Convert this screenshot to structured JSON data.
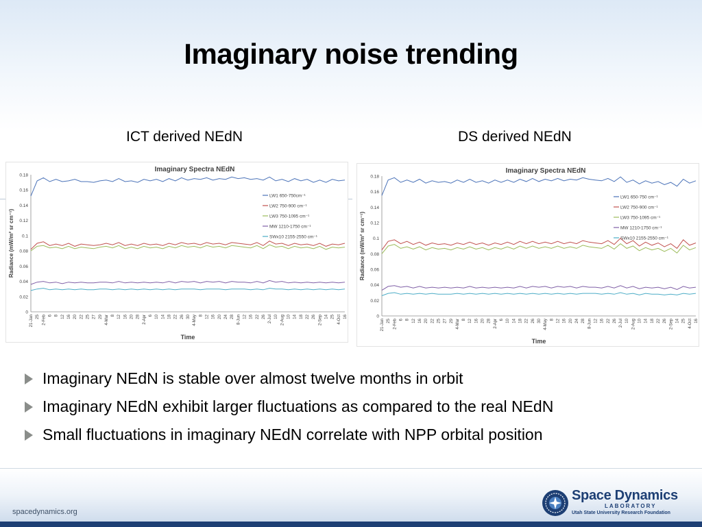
{
  "slide": {
    "title": "Imaginary noise trending",
    "subtitle_left": "ICT derived NEdN",
    "subtitle_right": "DS derived NEdN"
  },
  "bullets": [
    "Imaginary NEdN is stable over almost twelve months in orbit",
    "Imaginary NEdN exhibit larger fluctuations as compared to the real NEdN",
    "Small fluctuations in imaginary NEdN correlate with NPP orbital position"
  ],
  "footer": {
    "url": "spacedynamics.org",
    "logo_line1": "Space Dynamics",
    "logo_line2": "LABORATORY",
    "logo_line3": "Utah State University Research Foundation"
  },
  "colors": {
    "LW1": "#4a72b8",
    "LW2": "#c0504d",
    "LW3": "#9bbb59",
    "MW": "#7f5fa6",
    "SWx10": "#4bacc6",
    "footer_band": "#1d3f74",
    "bullet_arrow": "#8a8d8a"
  },
  "chart_data": [
    {
      "type": "line",
      "title": "Imaginary Spectra NEdN",
      "xlabel": "Time",
      "ylabel": "Radiance (mW/m² sr cm⁻¹)",
      "ylim": [
        0,
        0.18
      ],
      "yticks": [
        "0",
        "0.02",
        "0.04",
        "0.06",
        "0.08",
        "0.1",
        "0.12",
        "0.14",
        "0.16",
        "0.18"
      ],
      "x": [
        "21-Jan",
        "25",
        "2-Feb",
        "6",
        "8",
        "12",
        "16",
        "20",
        "22",
        "25",
        "27",
        "29",
        "4-Mar",
        "8",
        "12",
        "16",
        "20",
        "28",
        "2-Apr",
        "6",
        "10",
        "14",
        "18",
        "22",
        "26",
        "30",
        "4-May",
        "8",
        "12",
        "16",
        "20",
        "24",
        "28",
        "8-Jun",
        "12",
        "16",
        "22",
        "26",
        "2-Jul",
        "10",
        "2-Aug",
        "10",
        "14",
        "18",
        "22",
        "26",
        "2-Sep",
        "14",
        "25",
        "4-Oct",
        "16"
      ],
      "legend": "right",
      "grid": false,
      "series": [
        {
          "name": "LW1 650-750cm⁻¹",
          "color": "#4a72b8",
          "values": [
            0.152,
            0.172,
            0.176,
            0.171,
            0.174,
            0.171,
            0.172,
            0.174,
            0.171,
            0.171,
            0.17,
            0.172,
            0.173,
            0.171,
            0.175,
            0.171,
            0.172,
            0.17,
            0.174,
            0.172,
            0.174,
            0.171,
            0.175,
            0.172,
            0.176,
            0.173,
            0.175,
            0.174,
            0.176,
            0.173,
            0.175,
            0.174,
            0.177,
            0.175,
            0.176,
            0.174,
            0.175,
            0.173,
            0.177,
            0.172,
            0.174,
            0.171,
            0.175,
            0.172,
            0.174,
            0.17,
            0.173,
            0.17,
            0.174,
            0.172,
            0.173
          ]
        },
        {
          "name": "LW2 750-900  cm⁻¹",
          "color": "#c0504d",
          "values": [
            0.082,
            0.09,
            0.092,
            0.087,
            0.089,
            0.087,
            0.09,
            0.086,
            0.089,
            0.088,
            0.087,
            0.088,
            0.09,
            0.088,
            0.091,
            0.087,
            0.089,
            0.087,
            0.09,
            0.088,
            0.089,
            0.087,
            0.09,
            0.088,
            0.091,
            0.089,
            0.09,
            0.088,
            0.091,
            0.089,
            0.09,
            0.088,
            0.091,
            0.09,
            0.089,
            0.088,
            0.091,
            0.087,
            0.093,
            0.089,
            0.09,
            0.087,
            0.09,
            0.088,
            0.089,
            0.087,
            0.09,
            0.086,
            0.089,
            0.088,
            0.09
          ]
        },
        {
          "name": "LW3 750-1095  cm⁻¹",
          "color": "#9bbb59",
          "values": [
            0.08,
            0.086,
            0.087,
            0.084,
            0.085,
            0.083,
            0.086,
            0.083,
            0.085,
            0.084,
            0.083,
            0.085,
            0.086,
            0.084,
            0.087,
            0.083,
            0.085,
            0.083,
            0.086,
            0.084,
            0.085,
            0.083,
            0.086,
            0.084,
            0.087,
            0.085,
            0.086,
            0.084,
            0.087,
            0.085,
            0.086,
            0.084,
            0.087,
            0.086,
            0.085,
            0.084,
            0.087,
            0.083,
            0.088,
            0.085,
            0.086,
            0.083,
            0.086,
            0.084,
            0.085,
            0.083,
            0.086,
            0.082,
            0.085,
            0.084,
            0.085
          ]
        },
        {
          "name": "MW 1210-1750  cm⁻¹",
          "color": "#7f5fa6",
          "values": [
            0.036,
            0.039,
            0.04,
            0.038,
            0.039,
            0.037,
            0.039,
            0.038,
            0.039,
            0.038,
            0.038,
            0.039,
            0.039,
            0.038,
            0.04,
            0.038,
            0.039,
            0.038,
            0.039,
            0.038,
            0.039,
            0.038,
            0.04,
            0.038,
            0.04,
            0.039,
            0.04,
            0.038,
            0.04,
            0.039,
            0.04,
            0.038,
            0.04,
            0.039,
            0.039,
            0.038,
            0.04,
            0.038,
            0.041,
            0.039,
            0.04,
            0.038,
            0.039,
            0.038,
            0.039,
            0.038,
            0.039,
            0.038,
            0.039,
            0.038,
            0.039
          ]
        },
        {
          "name": "SWx10  2155-2550  cm⁻¹",
          "color": "#4bacc6",
          "values": [
            0.028,
            0.03,
            0.031,
            0.029,
            0.03,
            0.029,
            0.03,
            0.029,
            0.03,
            0.029,
            0.029,
            0.03,
            0.03,
            0.029,
            0.03,
            0.029,
            0.03,
            0.029,
            0.03,
            0.029,
            0.03,
            0.029,
            0.03,
            0.029,
            0.03,
            0.03,
            0.03,
            0.029,
            0.03,
            0.03,
            0.03,
            0.029,
            0.03,
            0.03,
            0.03,
            0.029,
            0.03,
            0.029,
            0.031,
            0.03,
            0.03,
            0.029,
            0.03,
            0.029,
            0.03,
            0.029,
            0.03,
            0.029,
            0.03,
            0.029,
            0.03
          ]
        }
      ]
    },
    {
      "type": "line",
      "title": "Imaginary Spectra NEdN",
      "xlabel": "Time",
      "ylabel": "Radiance (mW/m² sr cm⁻¹)",
      "ylim": [
        0,
        0.18
      ],
      "yticks": [
        "0",
        "0.02",
        "0.04",
        "0.06",
        "0.08",
        "0.1",
        "0.12",
        "0.14",
        "0.16",
        "0.18"
      ],
      "x": [
        "21-Jan",
        "25",
        "2-Feb",
        "6",
        "8",
        "12",
        "16",
        "20",
        "22",
        "25",
        "27",
        "29",
        "4-Mar",
        "8",
        "12",
        "16",
        "20",
        "28",
        "2-Apr",
        "6",
        "10",
        "14",
        "18",
        "22",
        "26",
        "30",
        "4-May",
        "8",
        "12",
        "16",
        "20",
        "24",
        "28",
        "8-Jun",
        "12",
        "16",
        "22",
        "26",
        "2-Jul",
        "10",
        "2-Aug",
        "10",
        "14",
        "18",
        "22",
        "26",
        "2-Sep",
        "14",
        "25",
        "4-Oct",
        "16"
      ],
      "legend": "right",
      "grid": false,
      "series": [
        {
          "name": "LW1 650-750  cm⁻¹",
          "color": "#4a72b8",
          "values": [
            0.155,
            0.175,
            0.178,
            0.172,
            0.175,
            0.172,
            0.176,
            0.171,
            0.174,
            0.172,
            0.173,
            0.171,
            0.175,
            0.172,
            0.176,
            0.172,
            0.174,
            0.171,
            0.175,
            0.172,
            0.175,
            0.172,
            0.176,
            0.173,
            0.177,
            0.173,
            0.176,
            0.174,
            0.177,
            0.174,
            0.176,
            0.175,
            0.178,
            0.176,
            0.175,
            0.174,
            0.177,
            0.173,
            0.179,
            0.172,
            0.175,
            0.17,
            0.174,
            0.171,
            0.173,
            0.169,
            0.172,
            0.167,
            0.176,
            0.171,
            0.174
          ]
        },
        {
          "name": "LW2 750-900  cm⁻¹",
          "color": "#c0504d",
          "values": [
            0.085,
            0.096,
            0.098,
            0.093,
            0.096,
            0.092,
            0.095,
            0.091,
            0.094,
            0.092,
            0.093,
            0.091,
            0.094,
            0.092,
            0.095,
            0.092,
            0.094,
            0.091,
            0.094,
            0.092,
            0.095,
            0.092,
            0.096,
            0.093,
            0.096,
            0.093,
            0.095,
            0.093,
            0.096,
            0.093,
            0.095,
            0.093,
            0.097,
            0.095,
            0.094,
            0.093,
            0.097,
            0.092,
            0.1,
            0.093,
            0.097,
            0.09,
            0.095,
            0.091,
            0.094,
            0.089,
            0.093,
            0.087,
            0.098,
            0.091,
            0.094
          ]
        },
        {
          "name": "LW3 750-1095  cm⁻¹",
          "color": "#9bbb59",
          "values": [
            0.08,
            0.09,
            0.092,
            0.087,
            0.089,
            0.086,
            0.089,
            0.085,
            0.088,
            0.086,
            0.087,
            0.085,
            0.088,
            0.086,
            0.089,
            0.086,
            0.088,
            0.085,
            0.088,
            0.086,
            0.089,
            0.086,
            0.09,
            0.087,
            0.09,
            0.087,
            0.089,
            0.087,
            0.09,
            0.087,
            0.089,
            0.087,
            0.091,
            0.089,
            0.088,
            0.087,
            0.091,
            0.086,
            0.093,
            0.087,
            0.09,
            0.084,
            0.088,
            0.085,
            0.087,
            0.083,
            0.087,
            0.081,
            0.091,
            0.085,
            0.088
          ]
        },
        {
          "name": "MW 1210-1750  cm⁻¹",
          "color": "#7f5fa6",
          "values": [
            0.033,
            0.038,
            0.039,
            0.037,
            0.038,
            0.036,
            0.038,
            0.036,
            0.037,
            0.036,
            0.037,
            0.036,
            0.037,
            0.036,
            0.038,
            0.036,
            0.037,
            0.036,
            0.037,
            0.036,
            0.037,
            0.036,
            0.038,
            0.036,
            0.038,
            0.037,
            0.038,
            0.036,
            0.038,
            0.037,
            0.038,
            0.036,
            0.038,
            0.037,
            0.037,
            0.036,
            0.038,
            0.036,
            0.039,
            0.036,
            0.038,
            0.035,
            0.037,
            0.036,
            0.037,
            0.035,
            0.037,
            0.034,
            0.038,
            0.036,
            0.037
          ]
        },
        {
          "name": "SWx10  2155-2550  cm⁻¹",
          "color": "#4bacc6",
          "values": [
            0.026,
            0.029,
            0.03,
            0.028,
            0.029,
            0.028,
            0.029,
            0.028,
            0.029,
            0.028,
            0.028,
            0.028,
            0.029,
            0.028,
            0.029,
            0.028,
            0.029,
            0.028,
            0.029,
            0.028,
            0.029,
            0.028,
            0.029,
            0.028,
            0.029,
            0.028,
            0.029,
            0.028,
            0.029,
            0.028,
            0.029,
            0.028,
            0.029,
            0.029,
            0.029,
            0.028,
            0.029,
            0.028,
            0.03,
            0.028,
            0.029,
            0.027,
            0.029,
            0.028,
            0.028,
            0.027,
            0.028,
            0.027,
            0.029,
            0.028,
            0.029
          ]
        }
      ]
    }
  ]
}
